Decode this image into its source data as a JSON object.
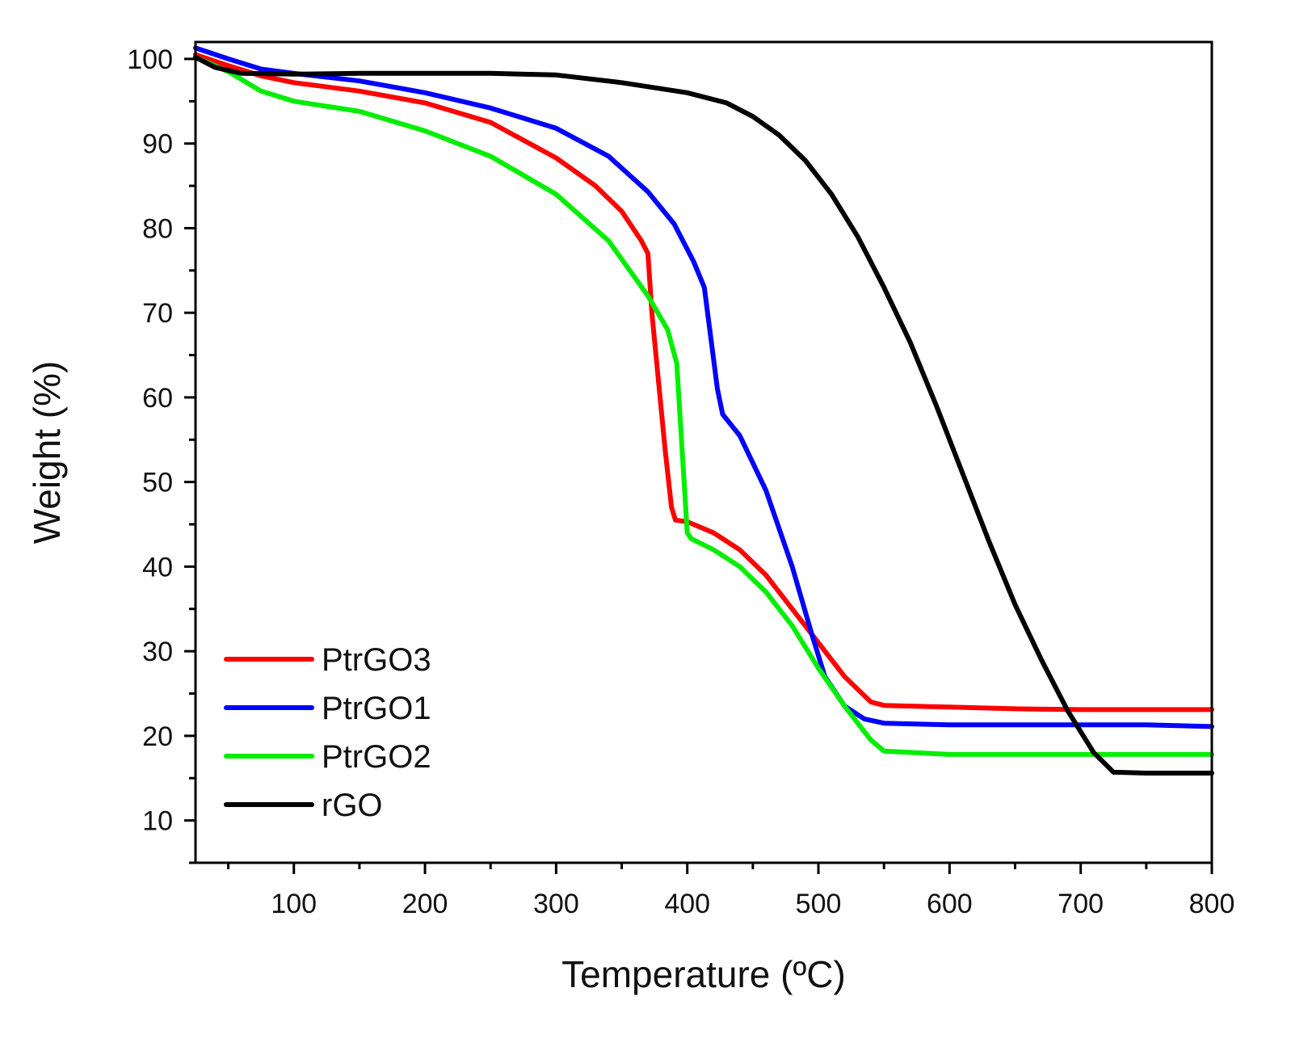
{
  "chart_data": {
    "type": "line",
    "title": "",
    "xlabel": "Temperature (ºC)",
    "ylabel": "Weight (%)",
    "xlim": [
      25,
      800
    ],
    "ylim": [
      5,
      102
    ],
    "xticks": [
      100,
      200,
      300,
      400,
      500,
      600,
      700,
      800
    ],
    "yticks": [
      10,
      20,
      30,
      40,
      50,
      60,
      70,
      80,
      90,
      100
    ],
    "x_minor_step": 50,
    "y_minor_step": 5,
    "grid": false,
    "legend_position": "bottom-left",
    "series": [
      {
        "name": "PtrGO3",
        "color": "#ff0000",
        "points": [
          [
            25,
            100.5
          ],
          [
            50,
            99.2
          ],
          [
            75,
            98
          ],
          [
            100,
            97.2
          ],
          [
            150,
            96.2
          ],
          [
            200,
            94.8
          ],
          [
            250,
            92.5
          ],
          [
            300,
            88.3
          ],
          [
            330,
            85
          ],
          [
            350,
            82
          ],
          [
            365,
            78.5
          ],
          [
            370,
            77
          ],
          [
            373,
            70
          ],
          [
            378,
            62
          ],
          [
            383,
            54
          ],
          [
            388,
            47
          ],
          [
            391,
            45.5
          ],
          [
            400,
            45.3
          ],
          [
            420,
            44
          ],
          [
            440,
            42
          ],
          [
            460,
            39
          ],
          [
            480,
            35
          ],
          [
            500,
            31
          ],
          [
            520,
            27
          ],
          [
            540,
            24
          ],
          [
            550,
            23.6
          ],
          [
            600,
            23.4
          ],
          [
            650,
            23.2
          ],
          [
            700,
            23.1
          ],
          [
            750,
            23.1
          ],
          [
            800,
            23.1
          ]
        ]
      },
      {
        "name": "PtrGO1",
        "color": "#0000ff",
        "points": [
          [
            25,
            101.3
          ],
          [
            50,
            100
          ],
          [
            75,
            98.8
          ],
          [
            100,
            98.3
          ],
          [
            150,
            97.4
          ],
          [
            200,
            96
          ],
          [
            250,
            94.2
          ],
          [
            300,
            91.8
          ],
          [
            340,
            88.5
          ],
          [
            370,
            84.3
          ],
          [
            390,
            80.5
          ],
          [
            405,
            76
          ],
          [
            413,
            73
          ],
          [
            418,
            67
          ],
          [
            423,
            61
          ],
          [
            427,
            58
          ],
          [
            440,
            55.5
          ],
          [
            460,
            49
          ],
          [
            480,
            40
          ],
          [
            495,
            32
          ],
          [
            505,
            27
          ],
          [
            520,
            23.5
          ],
          [
            535,
            22
          ],
          [
            550,
            21.5
          ],
          [
            600,
            21.3
          ],
          [
            650,
            21.3
          ],
          [
            700,
            21.3
          ],
          [
            750,
            21.3
          ],
          [
            800,
            21.1
          ]
        ]
      },
      {
        "name": "PtrGO2",
        "color": "#00ee00",
        "points": [
          [
            25,
            100.2
          ],
          [
            50,
            98.5
          ],
          [
            75,
            96.2
          ],
          [
            100,
            95
          ],
          [
            150,
            93.8
          ],
          [
            200,
            91.5
          ],
          [
            250,
            88.5
          ],
          [
            300,
            84
          ],
          [
            340,
            78.5
          ],
          [
            370,
            72
          ],
          [
            385,
            68
          ],
          [
            392,
            64
          ],
          [
            396,
            54
          ],
          [
            400,
            44
          ],
          [
            403,
            43.3
          ],
          [
            420,
            42
          ],
          [
            440,
            40
          ],
          [
            460,
            37
          ],
          [
            480,
            33
          ],
          [
            500,
            28
          ],
          [
            520,
            23.5
          ],
          [
            540,
            19.5
          ],
          [
            550,
            18.2
          ],
          [
            600,
            17.8
          ],
          [
            650,
            17.8
          ],
          [
            700,
            17.8
          ],
          [
            750,
            17.8
          ],
          [
            800,
            17.8
          ]
        ]
      },
      {
        "name": "rGO",
        "color": "#000000",
        "points": [
          [
            25,
            100.2
          ],
          [
            40,
            99
          ],
          [
            60,
            98.3
          ],
          [
            100,
            98.2
          ],
          [
            150,
            98.3
          ],
          [
            200,
            98.3
          ],
          [
            250,
            98.3
          ],
          [
            300,
            98.1
          ],
          [
            350,
            97.2
          ],
          [
            400,
            96
          ],
          [
            430,
            94.8
          ],
          [
            450,
            93.2
          ],
          [
            470,
            91
          ],
          [
            490,
            88
          ],
          [
            510,
            84
          ],
          [
            530,
            79
          ],
          [
            550,
            73
          ],
          [
            570,
            66.5
          ],
          [
            590,
            59
          ],
          [
            610,
            51
          ],
          [
            630,
            43
          ],
          [
            650,
            35.5
          ],
          [
            670,
            29
          ],
          [
            690,
            23
          ],
          [
            710,
            18
          ],
          [
            725,
            15.7
          ],
          [
            750,
            15.6
          ],
          [
            800,
            15.6
          ]
        ]
      }
    ]
  }
}
